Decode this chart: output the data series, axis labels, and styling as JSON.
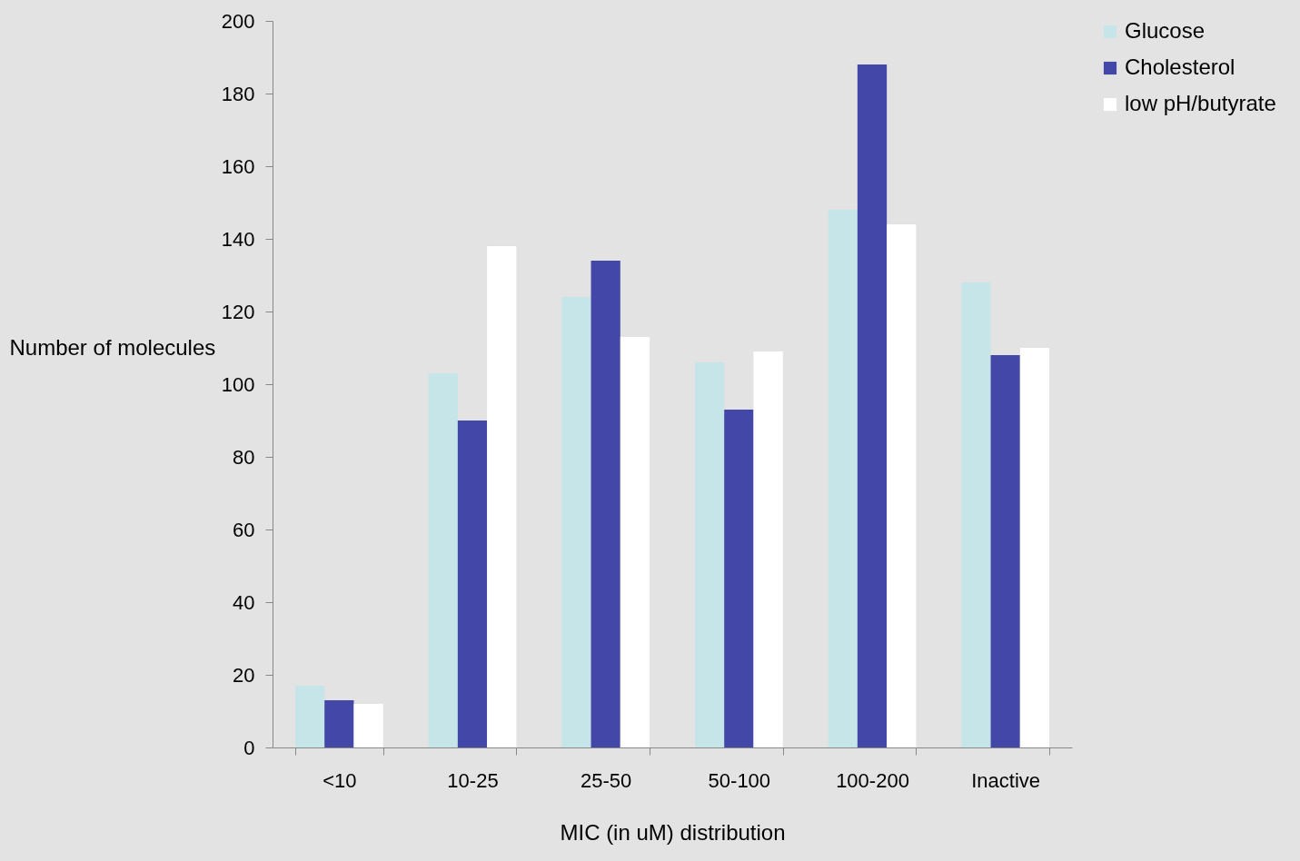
{
  "chart_data": {
    "type": "bar",
    "xlabel": "MIC (in uM) distribution",
    "ylabel": "Number of molecules",
    "categories": [
      "<10",
      "10-25",
      "25-50",
      "50-100",
      "100-200",
      "Inactive"
    ],
    "series": [
      {
        "name": "Glucose",
        "color": "#c5e5e8",
        "values": [
          17,
          103,
          124,
          106,
          148,
          128
        ]
      },
      {
        "name": "Cholesterol",
        "color": "#4347a8",
        "values": [
          13,
          90,
          134,
          93,
          188,
          108
        ]
      },
      {
        "name": "low pH/butyrate",
        "color": "#ffffff",
        "values": [
          12,
          138,
          113,
          109,
          144,
          110
        ]
      }
    ],
    "ylim": [
      0,
      200
    ],
    "yticks": [
      0,
      20,
      40,
      60,
      80,
      100,
      120,
      140,
      160,
      180,
      200
    ],
    "grid": false,
    "legend": "right"
  }
}
